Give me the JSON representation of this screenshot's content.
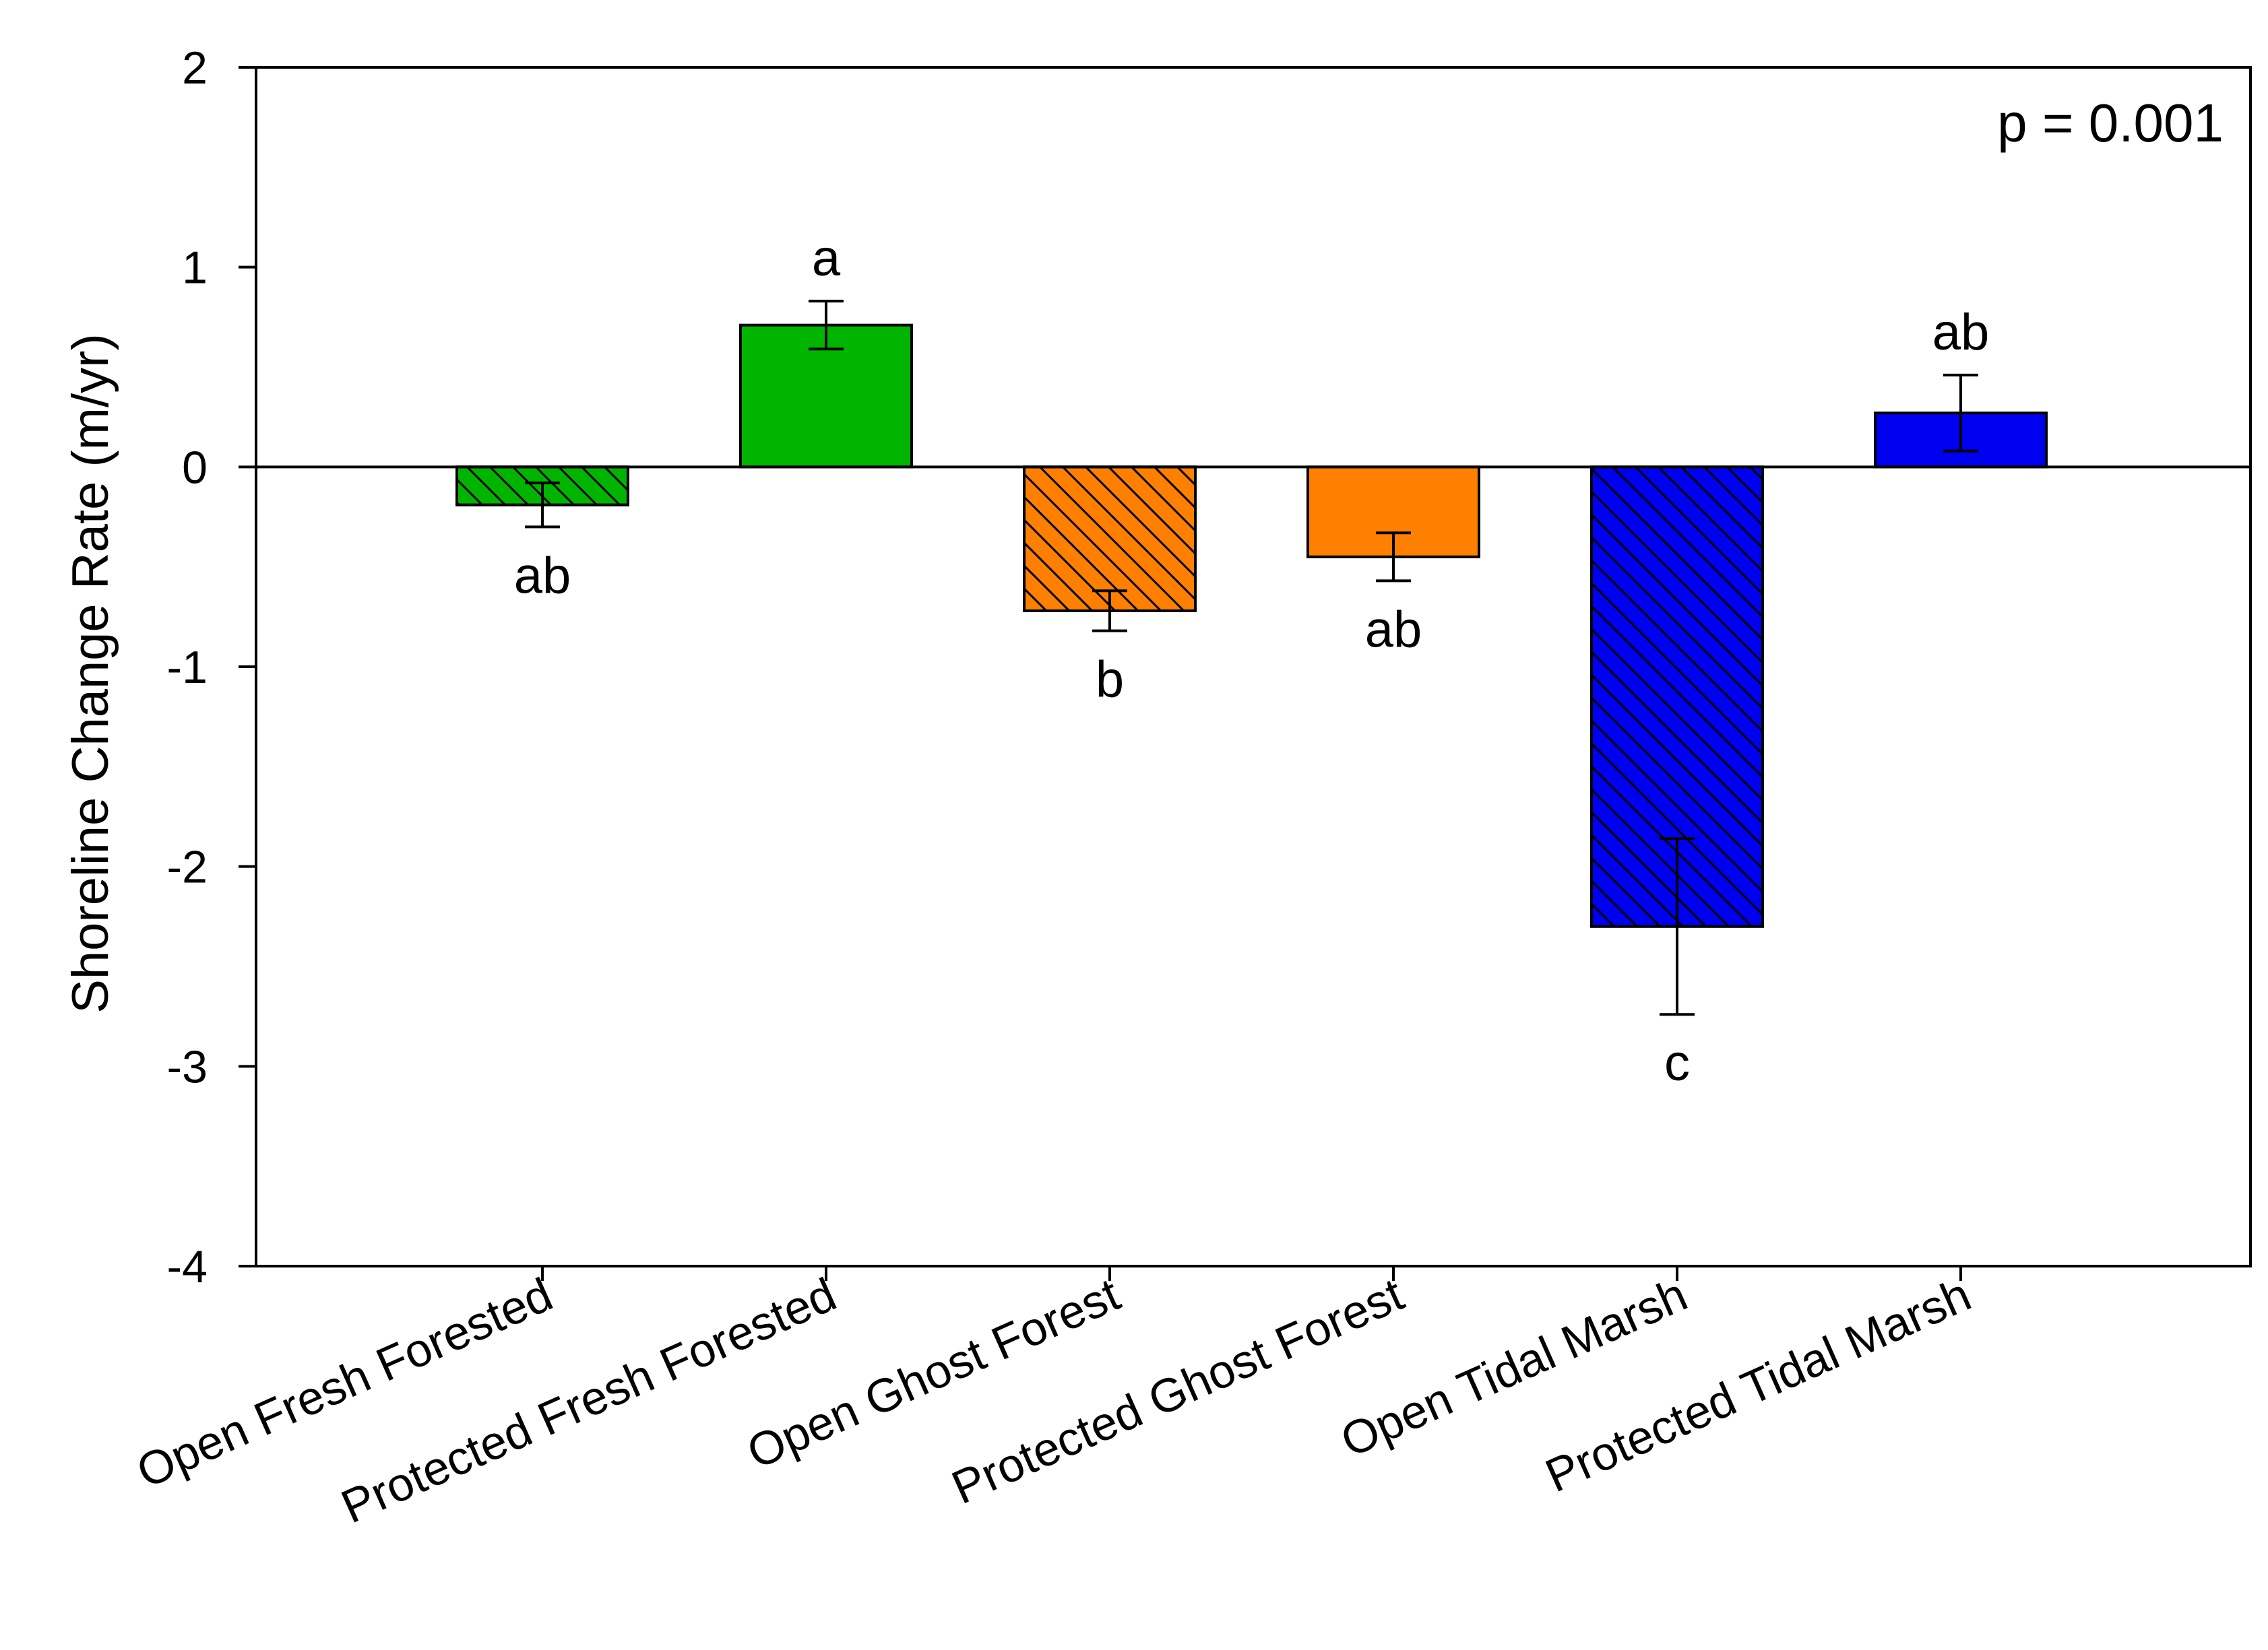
{
  "chart_data": {
    "type": "bar",
    "title": "",
    "xlabel": "",
    "ylabel": "Shoreline Change Rate (m/yr)",
    "ylim": [
      -4,
      2
    ],
    "yticks": [
      2,
      1,
      0,
      -1,
      -2,
      -3,
      -4
    ],
    "ytick_labels": [
      "2",
      "1",
      "0",
      "-1",
      "-2",
      "-3",
      "-4"
    ],
    "annotation": "p = 0.001",
    "categories": [
      "Open Fresh Forested",
      "Protected Fresh Forested",
      "Open Ghost Forest",
      "Protected Ghost Forest",
      "Open Tidal Marsh",
      "Protected Tidal Marsh"
    ],
    "values": [
      -0.19,
      0.71,
      -0.72,
      -0.45,
      -2.3,
      0.27
    ],
    "errors": [
      0.11,
      0.12,
      0.1,
      0.12,
      0.44,
      0.19
    ],
    "significance": [
      "ab",
      "a",
      "b",
      "ab",
      "c",
      "ab"
    ],
    "colors": [
      "#00b400",
      "#00b400",
      "#ff8000",
      "#ff8000",
      "#0000f0",
      "#0000f0"
    ],
    "hatched": [
      true,
      false,
      true,
      false,
      true,
      false
    ]
  }
}
